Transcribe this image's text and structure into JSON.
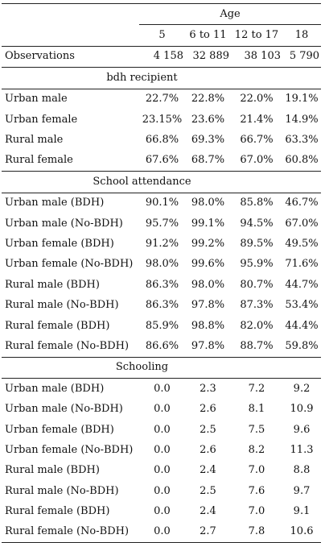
{
  "header": {
    "group_label": "Age",
    "columns": [
      "5",
      "6 to 11",
      "12 to 17",
      "18"
    ]
  },
  "observations": {
    "label": "Observations",
    "values": [
      "4 158",
      "32 889",
      "38 103",
      "5 790"
    ]
  },
  "sections": [
    {
      "title": "bdh recipient",
      "rows": [
        {
          "label": "Urban male",
          "values": [
            "22.7%",
            "22.8%",
            "22.0%",
            "19.1%"
          ]
        },
        {
          "label": "Urban female",
          "values": [
            "23.15%",
            "23.6%",
            "21.4%",
            "14.9%"
          ]
        },
        {
          "label": "Rural male",
          "values": [
            "66.8%",
            "69.3%",
            "66.7%",
            "63.3%"
          ]
        },
        {
          "label": "Rural female",
          "values": [
            "67.6%",
            "68.7%",
            "67.0%",
            "60.8%"
          ]
        }
      ]
    },
    {
      "title": "School attendance",
      "rows": [
        {
          "label": "Urban male (BDH)",
          "values": [
            "90.1%",
            "98.0%",
            "85.8%",
            "46.7%"
          ]
        },
        {
          "label": "Urban male (No-BDH)",
          "values": [
            "95.7%",
            "99.1%",
            "94.5%",
            "67.0%"
          ]
        },
        {
          "label": "Urban female (BDH)",
          "values": [
            "91.2%",
            "99.2%",
            "89.5%",
            "49.5%"
          ]
        },
        {
          "label": "Urban female (No-BDH)",
          "values": [
            "98.0%",
            "99.6%",
            "95.9%",
            "71.6%"
          ]
        },
        {
          "label": "Rural male (BDH)",
          "values": [
            "86.3%",
            "98.0%",
            "80.7%",
            "44.7%"
          ]
        },
        {
          "label": "Rural male (No-BDH)",
          "values": [
            "86.3%",
            "97.8%",
            "87.3%",
            "53.4%"
          ]
        },
        {
          "label": "Rural female (BDH)",
          "values": [
            "85.9%",
            "98.8%",
            "82.0%",
            "44.4%"
          ]
        },
        {
          "label": "Rural female (No-BDH)",
          "values": [
            "86.6%",
            "97.8%",
            "88.7%",
            "59.8%"
          ]
        }
      ]
    },
    {
      "title": "Schooling",
      "rows": [
        {
          "label": "Urban male (BDH)",
          "values": [
            "0.0",
            "2.3",
            "7.2",
            "9.2"
          ]
        },
        {
          "label": "Urban male (No-BDH)",
          "values": [
            "0.0",
            "2.6",
            "8.1",
            "10.9"
          ]
        },
        {
          "label": "Urban female (BDH)",
          "values": [
            "0.0",
            "2.5",
            "7.5",
            "9.6"
          ]
        },
        {
          "label": "Urban female (No-BDH)",
          "values": [
            "0.0",
            "2.6",
            "8.2",
            "11.3"
          ]
        },
        {
          "label": "Rural male (BDH)",
          "values": [
            "0.0",
            "2.4",
            "7.0",
            "8.8"
          ]
        },
        {
          "label": "Rural male (No-BDH)",
          "values": [
            "0.0",
            "2.5",
            "7.6",
            "9.7"
          ]
        },
        {
          "label": "Rural female (BDH)",
          "values": [
            "0.0",
            "2.4",
            "7.0",
            "9.1"
          ]
        },
        {
          "label": "Rural female (No-BDH)",
          "values": [
            "0.0",
            "2.7",
            "7.8",
            "10.6"
          ]
        }
      ]
    }
  ]
}
